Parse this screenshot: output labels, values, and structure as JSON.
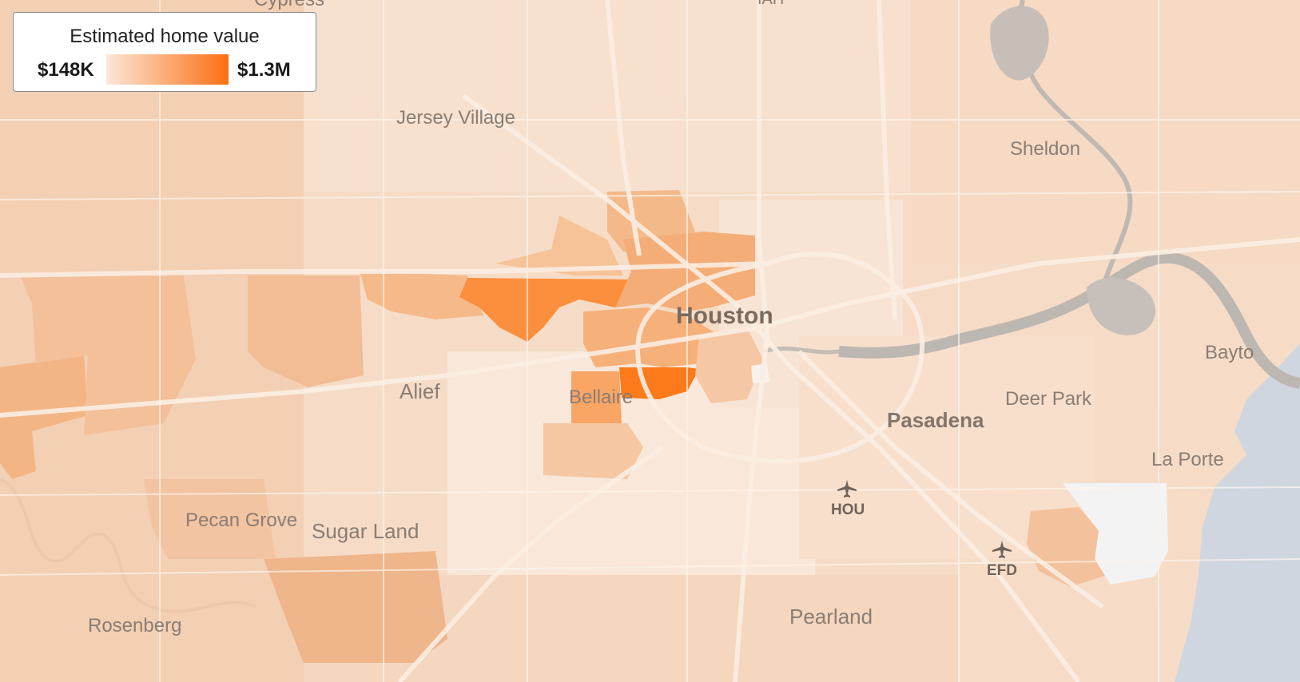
{
  "legend": {
    "title": "Estimated home value",
    "min_label": "$148K",
    "max_label": "$1.3M",
    "color_low": "#fbe7d8",
    "color_high": "#fb6f12"
  },
  "places": {
    "jersey_village": "Jersey Village",
    "sheldon": "Sheldon",
    "houston": "Houston",
    "alief": "Alief",
    "bellaire": "Bellaire",
    "pasadena": "Pasadena",
    "deer_park": "Deer Park",
    "baytown": "Bayto",
    "la_porte": "La Porte",
    "pecan_grove": "Pecan Grove",
    "sugar_land": "Sugar Land",
    "rosenberg": "Rosenberg",
    "pearland": "Pearland",
    "cypress": "Cypress",
    "iah": "IAH"
  },
  "airports": {
    "hou": "HOU",
    "efd": "EFD"
  },
  "colors": {
    "water": "#cfd6df",
    "river": "#b9b3ad",
    "base": "#f5dcc7"
  }
}
